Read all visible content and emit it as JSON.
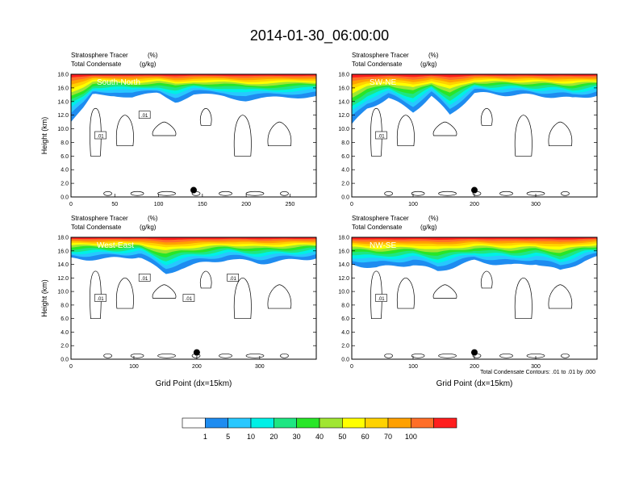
{
  "figure": {
    "title": "2014-01-30_06:00:00",
    "footnote": "Total Condensate Contours: .01 to .01 by .000"
  },
  "colorbar": {
    "labels": [
      "1",
      "5",
      "10",
      "20",
      "30",
      "40",
      "50",
      "60",
      "70",
      "100"
    ],
    "colors": [
      "#ffffff",
      "#1e8cf0",
      "#28c8ff",
      "#00f0e6",
      "#1ee682",
      "#28e628",
      "#a0e632",
      "#ffff00",
      "#ffd200",
      "#ffa000",
      "#ff6e28",
      "#ff1e1e"
    ]
  },
  "chart_data": [
    {
      "type": "contour",
      "panel_label": "South-North",
      "title_left_1": "Stratosphere Tracer",
      "title_unit_1": "(%)",
      "title_left_2": "Total Condensate",
      "title_unit_2": "(g/kg)",
      "ylabel": "Height (km)",
      "xlabel": "",
      "xlim": [
        0,
        280
      ],
      "ylim": [
        0,
        18
      ],
      "xticks": [
        "0",
        "50",
        "100",
        "150",
        "200",
        "250"
      ],
      "yticks": [
        "0.0",
        "2.0",
        "4.0",
        "6.0",
        "8.0",
        "10.0",
        "12.0",
        "14.0",
        "16.0",
        "18.0"
      ],
      "contour_labels": [
        ".01",
        ".01"
      ],
      "marker_x": 140,
      "tracer_profile": [
        {
          "x": 0,
          "base": 11.0
        },
        {
          "x": 15,
          "base": 13.0
        },
        {
          "x": 25,
          "base": 15.0
        },
        {
          "x": 50,
          "base": 15.0
        },
        {
          "x": 70,
          "base": 14.6
        },
        {
          "x": 100,
          "base": 15.2
        },
        {
          "x": 120,
          "base": 14.0
        },
        {
          "x": 140,
          "base": 15.0
        },
        {
          "x": 175,
          "base": 14.8
        },
        {
          "x": 200,
          "base": 14.2
        },
        {
          "x": 240,
          "base": 14.6
        },
        {
          "x": 280,
          "base": 14.8
        }
      ]
    },
    {
      "type": "contour",
      "panel_label": "SW-NE",
      "title_left_1": "Stratosphere Tracer",
      "title_unit_1": "(%)",
      "title_left_2": "Total Condensate",
      "title_unit_2": "(g/kg)",
      "ylabel": "",
      "xlabel": "",
      "xlim": [
        0,
        400
      ],
      "ylim": [
        0,
        18
      ],
      "xticks": [
        "0",
        "100",
        "200",
        "300"
      ],
      "yticks": [
        "0.0",
        "2.0",
        "4.0",
        "6.0",
        "8.0",
        "10.0",
        "12.0",
        "14.0",
        "16.0",
        "18.0"
      ],
      "contour_labels": [
        ".01"
      ],
      "marker_x": 200,
      "tracer_profile": [
        {
          "x": 0,
          "base": 10.5
        },
        {
          "x": 25,
          "base": 13.0
        },
        {
          "x": 60,
          "base": 14.5
        },
        {
          "x": 100,
          "base": 12.5
        },
        {
          "x": 130,
          "base": 14.8
        },
        {
          "x": 160,
          "base": 12.0
        },
        {
          "x": 200,
          "base": 15.2
        },
        {
          "x": 260,
          "base": 15.0
        },
        {
          "x": 320,
          "base": 14.8
        },
        {
          "x": 360,
          "base": 14.4
        },
        {
          "x": 400,
          "base": 15.0
        }
      ]
    },
    {
      "type": "contour",
      "panel_label": "West-East",
      "title_left_1": "Stratosphere Tracer",
      "title_unit_1": "(%)",
      "title_left_2": "Total Condensate",
      "title_unit_2": "(g/kg)",
      "ylabel": "Height (km)",
      "xlabel": "Grid Point (dx=15km)",
      "xlim": [
        0,
        390
      ],
      "ylim": [
        0,
        18
      ],
      "xticks": [
        "0",
        "100",
        "200",
        "300"
      ],
      "yticks": [
        "0.0",
        "2.0",
        "4.0",
        "6.0",
        "8.0",
        "10.0",
        "12.0",
        "14.0",
        "16.0",
        "18.0"
      ],
      "contour_labels": [
        ".01",
        ".01",
        ".01",
        ".01"
      ],
      "marker_x": 200,
      "tracer_profile": [
        {
          "x": 0,
          "base": 14.8
        },
        {
          "x": 60,
          "base": 14.8
        },
        {
          "x": 110,
          "base": 15.2
        },
        {
          "x": 150,
          "base": 12.5
        },
        {
          "x": 175,
          "base": 13.5
        },
        {
          "x": 200,
          "base": 14.0
        },
        {
          "x": 250,
          "base": 14.8
        },
        {
          "x": 300,
          "base": 14.2
        },
        {
          "x": 350,
          "base": 14.6
        },
        {
          "x": 390,
          "base": 15.0
        }
      ]
    },
    {
      "type": "contour",
      "panel_label": "NW-SE",
      "title_left_1": "Stratosphere Tracer",
      "title_unit_1": "(%)",
      "title_left_2": "Total Condensate",
      "title_unit_2": "(g/kg)",
      "ylabel": "",
      "xlabel": "Grid Point (dx=15km)",
      "xlim": [
        0,
        400
      ],
      "ylim": [
        0,
        18
      ],
      "xticks": [
        "0",
        "100",
        "200",
        "300"
      ],
      "yticks": [
        "0.0",
        "2.0",
        "4.0",
        "6.0",
        "8.0",
        "10.0",
        "12.0",
        "14.0",
        "16.0",
        "18.0"
      ],
      "contour_labels": [
        ".01"
      ],
      "marker_x": 200,
      "tracer_profile": [
        {
          "x": 0,
          "base": 14.0
        },
        {
          "x": 40,
          "base": 13.5
        },
        {
          "x": 100,
          "base": 14.0
        },
        {
          "x": 140,
          "base": 13.0
        },
        {
          "x": 200,
          "base": 14.5
        },
        {
          "x": 260,
          "base": 13.8
        },
        {
          "x": 300,
          "base": 14.2
        },
        {
          "x": 340,
          "base": 13.0
        },
        {
          "x": 380,
          "base": 14.6
        },
        {
          "x": 400,
          "base": 15.0
        }
      ]
    }
  ]
}
